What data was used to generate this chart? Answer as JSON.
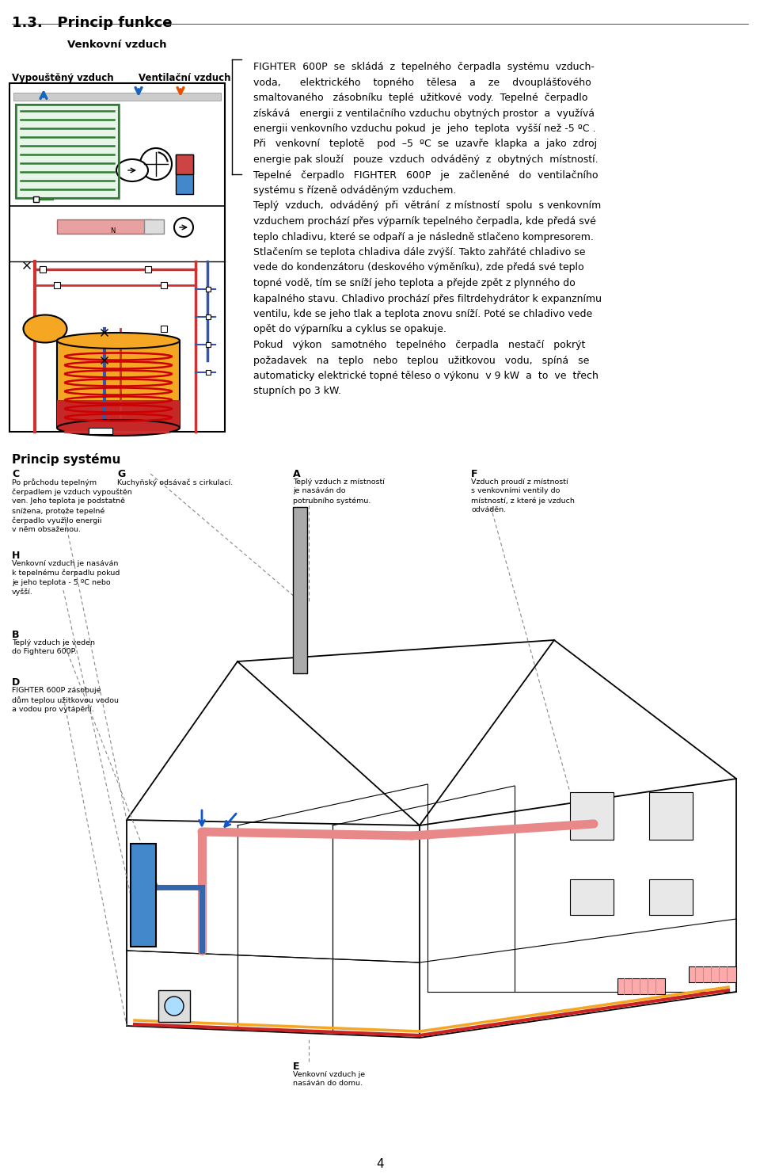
{
  "bg_color": "#ffffff",
  "text_color": "#000000",
  "page_number": "4",
  "heading": "1.3.   Princip funkce",
  "label_venkovni": "Venkovní vzduch",
  "label_vypousteny": "Vypouštěný vzduch",
  "label_ventilacni": "Ventilační vzduch",
  "right_text_lines": [
    "FIGHTER  600P  se  skládá  z  tepelného  čerpadla  systému  vzduch-",
    "voda,      elektrického    topného    tělesa    a    ze    dvouplášťového",
    "smaltovaného   zásobníku  teplé  užitkové  vody.  Tepelné  čerpadlo",
    "získává   energii z ventilačního vzduchu obytných prostor  a  využívá",
    "energii venkovního vzduchu pokud  je  jeho  teplota  vyšší než -5 ºC .",
    "Při   venkovní   teplotě    pod  –5  ºC  se  uzavře  klapka  a  jako  zdroj",
    "energie pak slouží   pouze  vzduch  odváděný  z  obytných  místností.",
    "Tepelné   čerpadlo   FIGHTER   600P   je   začleněné   do  ventilačního",
    "systému s řízeně odváděným vzduchem.",
    "Teplý  vzduch,  odváděný  při  větrání  z místností  spolu  s venkovním",
    "vzduchem prochází přes výparník tepelného čerpadla, kde předá své",
    "teplo chladivu, které se odpaří a je následně stlačeno kompresorem.",
    "Stlačením se teplota chladiva dále zvýší. Takto zahřáté chladivo se",
    "vede do kondenzátoru (deskového výměníku), zde předá své teplo",
    "topné vodě, tím se sníží jeho teplota a přejde zpět z plynného do",
    "kapalného stavu. Chladivo prochází přes filtrdehydrátor k expanznímu",
    "ventilu, kde se jeho tlak a teplota znovu sníží. Poté se chladivo vede",
    "opět do výparníku a cyklus se opakuje.",
    "Pokud   výkon   samotného   tepelného   čerpadla   nestačí   pokrýt",
    "požadavek   na   teplo   nebo   teplou   užitkovou   vodu,   spíná   se",
    "automaticky elektrické topné těleso o výkonu  v 9 kW  a  to  ve  třech",
    "stupních po 3 kW."
  ],
  "heading_princip": "Princip systému",
  "label_C": "C",
  "text_C": "Po průchodu tepelným\nčerpadlem je vzduch vypouštěn\nven. Jeho teplota je podstatně\nsnížena, protože tepelné\nčerpadlo využilo energii\nv něm obsaženou.",
  "label_G": "G",
  "text_G": "Kuchyňský odsávač s cirkulací.",
  "label_A": "A",
  "text_A": "Teplý vzduch z místností\nje nasáván do\npotrubního systému.",
  "label_F": "F",
  "text_F": "Vzduch proudí z místností\ns venkovními ventily do\nmístností, z které je vzduch\nodváděn.",
  "label_H": "H",
  "text_H": "Venkovní vzduch je nasáván\nk tepelnému čerpadlu pokud\nje jeho teplota - 5 ºC nebo\nvyšší.",
  "label_B": "B",
  "text_B": "Teplý vzduch je veden\ndo Fighteru 600P.",
  "label_D": "D",
  "text_D": "FIGHTER 600P zásobuje\ndům teplou užitkovou vodou\na vodou pro vytápění.",
  "label_E": "E",
  "text_E": "Venkovní vzduch je\nnasáván do domu.",
  "green_dark": "#2e7d32",
  "green_med": "#388e3c",
  "blue_arrow": "#1565c0",
  "orange_arrow": "#e65100",
  "tank_orange": "#f5a623",
  "tank_red": "#c62828",
  "pipe_red": "#cc3333",
  "pipe_blue": "#3355aa",
  "pink_pipe": "#e8a0a0",
  "coil_red": "#cc0000",
  "hx_blue": "#4488cc",
  "hx_red": "#cc4444"
}
